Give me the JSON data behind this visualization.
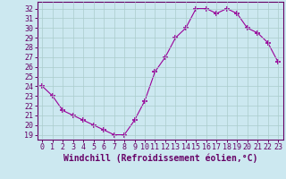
{
  "x": [
    0,
    1,
    2,
    3,
    4,
    5,
    6,
    7,
    8,
    9,
    10,
    11,
    12,
    13,
    14,
    15,
    16,
    17,
    18,
    19,
    20,
    21,
    22,
    23
  ],
  "y": [
    24,
    23,
    21.5,
    21,
    20.5,
    20,
    19.5,
    19,
    19,
    20.5,
    22.5,
    25.5,
    27,
    29,
    30,
    32,
    32,
    31.5,
    32,
    31.5,
    30,
    29.5,
    28.5,
    26.5
  ],
  "line_color": "#990099",
  "marker": "+",
  "marker_size": 4,
  "bg_color": "#cce8f0",
  "grid_color": "#aacccc",
  "xlabel": "Windchill (Refroidissement éolien,°C)",
  "xlabel_fontsize": 7,
  "ylabel_ticks": [
    19,
    20,
    21,
    22,
    23,
    24,
    25,
    26,
    27,
    28,
    29,
    30,
    31,
    32
  ],
  "xlim": [
    -0.5,
    23.5
  ],
  "ylim": [
    18.5,
    32.7
  ],
  "xtick_labels": [
    "0",
    "1",
    "2",
    "3",
    "4",
    "5",
    "6",
    "7",
    "8",
    "9",
    "10",
    "11",
    "12",
    "13",
    "14",
    "15",
    "16",
    "17",
    "18",
    "19",
    "20",
    "21",
    "22",
    "23"
  ],
  "tick_fontsize": 6,
  "line_color_hex": "#990099",
  "spine_color": "#660066"
}
